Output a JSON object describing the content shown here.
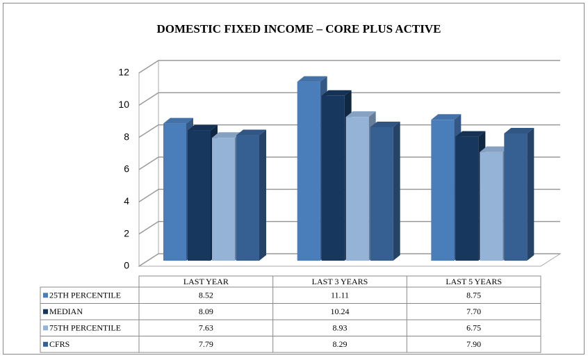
{
  "chart_data": {
    "type": "bar3d",
    "title": "DOMESTIC FIXED INCOME – CORE PLUS ACTIVE",
    "categories": [
      "LAST YEAR",
      "LAST 3 YEARS",
      "LAST 5 YEARS"
    ],
    "series": [
      {
        "name": "25TH PERCENTILE",
        "color": "#4a7ebb",
        "values": [
          8.52,
          11.11,
          8.75
        ],
        "value_labels": [
          "8.52",
          "11.11",
          "8.75"
        ]
      },
      {
        "name": "MEDIAN",
        "color": "#17375e",
        "values": [
          8.09,
          10.24,
          7.7
        ],
        "value_labels": [
          "8.09",
          "10.24",
          "7.70"
        ]
      },
      {
        "name": "75TH PERCENTILE",
        "color": "#95b3d7",
        "values": [
          7.63,
          8.93,
          6.75
        ],
        "value_labels": [
          "7.63",
          "8.93",
          "6.75"
        ]
      },
      {
        "name": "CFRS",
        "color": "#366092",
        "values": [
          7.79,
          8.29,
          7.9
        ],
        "value_labels": [
          "7.79",
          "8.29",
          "7.90"
        ]
      }
    ],
    "ylim": [
      0,
      12
    ],
    "yticks": [
      0,
      2,
      4,
      6,
      8,
      10,
      12
    ],
    "grid": true
  }
}
